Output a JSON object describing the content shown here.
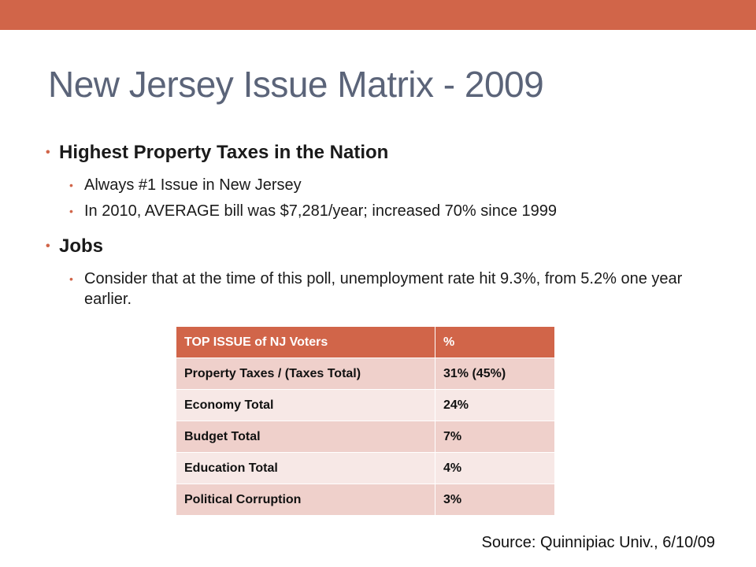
{
  "slide": {
    "title": "New Jersey Issue Matrix - 2009",
    "accent_color": "#D16549",
    "title_color": "#5B6479",
    "bullets": [
      {
        "text": "Highest Property Taxes in the Nation",
        "sub": [
          "Always #1 Issue in New Jersey",
          "In 2010,  AVERAGE bill was $7,281/year; increased 70% since 1999"
        ]
      },
      {
        "text": "Jobs",
        "sub": [
          "Consider that at the time of this poll, unemployment rate hit 9.3%, from 5.2% one year earlier."
        ]
      }
    ],
    "table": {
      "headers": [
        "TOP ISSUE of NJ Voters",
        "%"
      ],
      "rows": [
        [
          "Property Taxes   / (Taxes Total)",
          "31% (45%)"
        ],
        [
          "Economy Total",
          "24%"
        ],
        [
          "Budget Total",
          "7%"
        ],
        [
          "Education Total",
          "4%"
        ],
        [
          "Political Corruption",
          "3%"
        ]
      ]
    },
    "source": "Source: Quinnipiac Univ., 6/10/09"
  }
}
